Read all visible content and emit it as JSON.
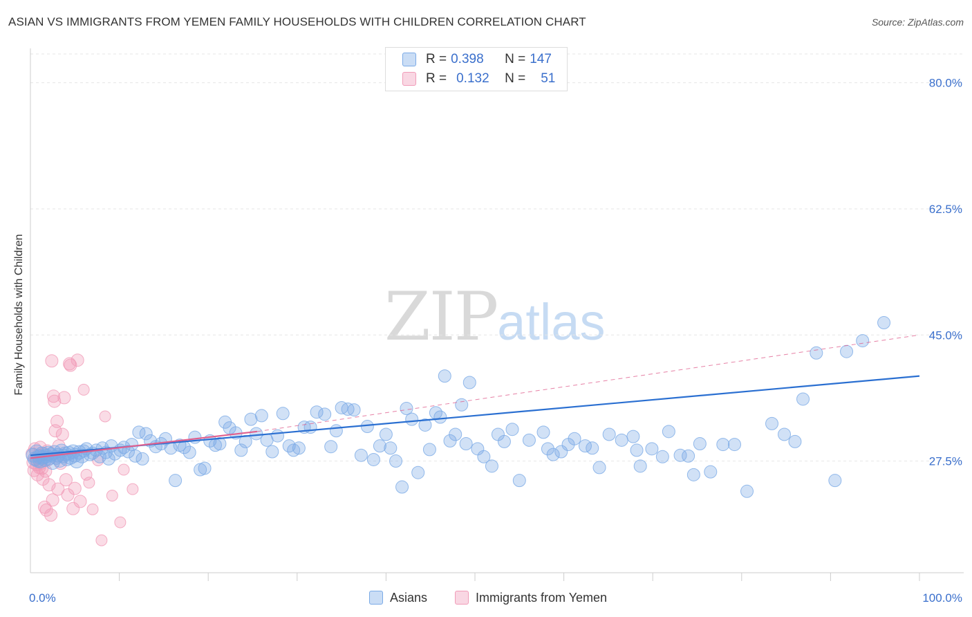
{
  "title": "ASIAN VS IMMIGRANTS FROM YEMEN FAMILY HOUSEHOLDS WITH CHILDREN CORRELATION CHART",
  "source": "Source: ZipAtlas.com",
  "watermark": {
    "zip": "ZIP",
    "atlas": "atlas"
  },
  "colors": {
    "asians": "#7aaae6",
    "yemen": "#f19bb8",
    "asians_line": "#2a6fd1",
    "yemen_line": "#e0608e"
  },
  "legend": {
    "asians": {
      "r_label": "R = ",
      "r_value": "0.398",
      "n_label": "N = ",
      "n_value": "147"
    },
    "yemen": {
      "r_label": "R = ",
      "r_value": "0.132",
      "n_label": "N = ",
      "n_value": "51"
    }
  },
  "chart_data": {
    "type": "scatter",
    "title": "ASIAN VS IMMIGRANTS FROM YEMEN FAMILY HOUSEHOLDS WITH CHILDREN CORRELATION CHART",
    "xlabel": "",
    "ylabel": "Family Households with Children",
    "xlim": [
      0,
      100
    ],
    "ylim": [
      12,
      84
    ],
    "x_tick_labels": [
      "0.0%",
      "100.0%"
    ],
    "y_ticks": [
      27.5,
      45.0,
      62.5,
      80.0
    ],
    "y_tick_labels": [
      "27.5%",
      "45.0%",
      "62.5%",
      "80.0%"
    ],
    "grid": true,
    "legend_position": "bottom",
    "series": [
      {
        "name": "Asians",
        "r": 0.398,
        "n": 147,
        "trend": {
          "x": [
            0,
            100
          ],
          "y": [
            28.3,
            39.3
          ],
          "style": "solid"
        },
        "points": [
          [
            0.3,
            28.3
          ],
          [
            0.5,
            27.8
          ],
          [
            0.7,
            28.8
          ],
          [
            0.8,
            27.6
          ],
          [
            1.0,
            28.1
          ],
          [
            1.1,
            27.5
          ],
          [
            1.3,
            28.5
          ],
          [
            1.4,
            28.0
          ],
          [
            1.6,
            27.7
          ],
          [
            1.8,
            28.2
          ],
          [
            2.0,
            28.6
          ],
          [
            2.1,
            27.9
          ],
          [
            2.3,
            28.4
          ],
          [
            2.5,
            27.3
          ],
          [
            2.7,
            28.7
          ],
          [
            2.9,
            28.0
          ],
          [
            3.1,
            28.3
          ],
          [
            3.3,
            27.6
          ],
          [
            3.5,
            28.9
          ],
          [
            3.7,
            28.2
          ],
          [
            3.9,
            28.5
          ],
          [
            4.1,
            27.8
          ],
          [
            4.3,
            28.6
          ],
          [
            4.5,
            28.0
          ],
          [
            4.8,
            28.8
          ],
          [
            5.0,
            28.3
          ],
          [
            5.2,
            27.5
          ],
          [
            5.5,
            28.7
          ],
          [
            5.8,
            28.2
          ],
          [
            6.0,
            28.9
          ],
          [
            6.3,
            29.2
          ],
          [
            6.7,
            28.4
          ],
          [
            7.0,
            28.6
          ],
          [
            7.4,
            29.0
          ],
          [
            7.8,
            28.1
          ],
          [
            8.1,
            29.3
          ],
          [
            8.5,
            28.7
          ],
          [
            8.8,
            27.8
          ],
          [
            9.1,
            29.6
          ],
          [
            9.5,
            28.5
          ],
          [
            10.1,
            29.0
          ],
          [
            10.5,
            29.4
          ],
          [
            11.0,
            28.8
          ],
          [
            11.4,
            29.8
          ],
          [
            11.8,
            28.2
          ],
          [
            12.2,
            31.5
          ],
          [
            12.6,
            27.8
          ],
          [
            13.0,
            31.3
          ],
          [
            13.5,
            30.3
          ],
          [
            14.1,
            29.5
          ],
          [
            14.7,
            29.9
          ],
          [
            15.2,
            30.6
          ],
          [
            15.8,
            29.3
          ],
          [
            16.3,
            24.8
          ],
          [
            16.8,
            29.7
          ],
          [
            17.3,
            29.4
          ],
          [
            17.9,
            28.7
          ],
          [
            18.5,
            30.8
          ],
          [
            19.1,
            26.3
          ],
          [
            19.6,
            26.5
          ],
          [
            20.2,
            30.3
          ],
          [
            20.8,
            29.7
          ],
          [
            21.3,
            29.9
          ],
          [
            21.9,
            32.9
          ],
          [
            22.4,
            32.1
          ],
          [
            23.1,
            31.4
          ],
          [
            23.7,
            29.0
          ],
          [
            24.2,
            30.2
          ],
          [
            24.8,
            33.3
          ],
          [
            25.4,
            31.3
          ],
          [
            26.0,
            33.8
          ],
          [
            26.6,
            30.4
          ],
          [
            27.2,
            28.8
          ],
          [
            27.8,
            31.0
          ],
          [
            28.4,
            34.1
          ],
          [
            29.1,
            29.6
          ],
          [
            29.6,
            29.0
          ],
          [
            30.2,
            29.3
          ],
          [
            30.8,
            32.2
          ],
          [
            31.5,
            32.2
          ],
          [
            32.2,
            34.3
          ],
          [
            33.1,
            34.0
          ],
          [
            33.8,
            29.5
          ],
          [
            34.4,
            31.7
          ],
          [
            35.0,
            34.9
          ],
          [
            35.7,
            34.7
          ],
          [
            36.4,
            34.6
          ],
          [
            37.2,
            28.3
          ],
          [
            37.9,
            32.3
          ],
          [
            38.6,
            27.7
          ],
          [
            39.3,
            29.6
          ],
          [
            40.0,
            31.2
          ],
          [
            40.5,
            29.3
          ],
          [
            41.1,
            27.5
          ],
          [
            41.8,
            23.9
          ],
          [
            42.3,
            34.8
          ],
          [
            42.9,
            33.3
          ],
          [
            43.6,
            25.9
          ],
          [
            44.4,
            32.5
          ],
          [
            44.9,
            29.1
          ],
          [
            45.6,
            34.2
          ],
          [
            46.1,
            33.6
          ],
          [
            46.6,
            39.3
          ],
          [
            47.2,
            30.3
          ],
          [
            47.8,
            31.2
          ],
          [
            48.5,
            35.3
          ],
          [
            49.0,
            29.9
          ],
          [
            49.4,
            38.4
          ],
          [
            50.3,
            29.2
          ],
          [
            51.0,
            28.1
          ],
          [
            51.9,
            26.8
          ],
          [
            52.6,
            31.2
          ],
          [
            53.3,
            30.2
          ],
          [
            54.2,
            31.9
          ],
          [
            55.0,
            24.8
          ],
          [
            56.1,
            30.4
          ],
          [
            57.7,
            31.5
          ],
          [
            58.2,
            29.2
          ],
          [
            58.8,
            28.4
          ],
          [
            59.7,
            28.8
          ],
          [
            60.5,
            29.8
          ],
          [
            61.2,
            30.6
          ],
          [
            62.4,
            29.6
          ],
          [
            63.2,
            29.3
          ],
          [
            64.0,
            26.6
          ],
          [
            65.1,
            31.2
          ],
          [
            66.5,
            30.4
          ],
          [
            67.8,
            30.9
          ],
          [
            68.2,
            29.0
          ],
          [
            68.6,
            26.8
          ],
          [
            69.9,
            29.2
          ],
          [
            71.1,
            28.1
          ],
          [
            71.8,
            31.6
          ],
          [
            73.1,
            28.3
          ],
          [
            74.0,
            28.2
          ],
          [
            74.6,
            25.6
          ],
          [
            75.3,
            29.9
          ],
          [
            76.5,
            26.0
          ],
          [
            77.9,
            29.8
          ],
          [
            79.2,
            29.8
          ],
          [
            80.6,
            23.3
          ],
          [
            83.4,
            32.7
          ],
          [
            84.8,
            31.2
          ],
          [
            86.0,
            30.2
          ],
          [
            86.9,
            36.1
          ],
          [
            88.4,
            42.5
          ],
          [
            90.5,
            24.8
          ],
          [
            91.8,
            42.7
          ],
          [
            93.6,
            44.2
          ],
          [
            96.0,
            46.7
          ]
        ]
      },
      {
        "name": "Immigrants from Yemen",
        "r": 0.132,
        "n": 51,
        "trend": {
          "x": [
            0,
            25.5,
            100
          ],
          "y": [
            27.9,
            31.6,
            45.0
          ],
          "style": "solid then dashed"
        },
        "points": [
          [
            0.2,
            28.5
          ],
          [
            0.3,
            27.3
          ],
          [
            0.4,
            26.2
          ],
          [
            0.5,
            29.2
          ],
          [
            0.6,
            27.8
          ],
          [
            0.7,
            27.0
          ],
          [
            0.8,
            25.6
          ],
          [
            0.9,
            28.3
          ],
          [
            1.0,
            26.6
          ],
          [
            1.1,
            29.4
          ],
          [
            1.2,
            27.2
          ],
          [
            1.3,
            26.5
          ],
          [
            1.4,
            25.0
          ],
          [
            1.5,
            28.5
          ],
          [
            1.6,
            21.1
          ],
          [
            1.7,
            26.1
          ],
          [
            1.8,
            20.7
          ],
          [
            1.9,
            28.9
          ],
          [
            2.0,
            27.7
          ],
          [
            2.1,
            24.2
          ],
          [
            2.3,
            20.0
          ],
          [
            2.4,
            41.4
          ],
          [
            2.5,
            22.1
          ],
          [
            2.6,
            36.5
          ],
          [
            2.7,
            35.8
          ],
          [
            2.8,
            31.7
          ],
          [
            3.0,
            33.0
          ],
          [
            3.1,
            23.6
          ],
          [
            3.2,
            29.6
          ],
          [
            3.4,
            27.2
          ],
          [
            3.6,
            31.2
          ],
          [
            3.8,
            36.3
          ],
          [
            4.0,
            24.9
          ],
          [
            4.2,
            22.8
          ],
          [
            4.4,
            41.0
          ],
          [
            4.5,
            40.8
          ],
          [
            4.8,
            20.9
          ],
          [
            5.0,
            23.7
          ],
          [
            5.3,
            41.5
          ],
          [
            5.6,
            21.9
          ],
          [
            6.0,
            37.4
          ],
          [
            6.3,
            25.6
          ],
          [
            6.6,
            24.5
          ],
          [
            7.0,
            20.8
          ],
          [
            7.6,
            27.6
          ],
          [
            8.0,
            16.5
          ],
          [
            8.4,
            33.7
          ],
          [
            9.2,
            22.7
          ],
          [
            10.1,
            19.0
          ],
          [
            10.5,
            26.3
          ],
          [
            11.5,
            23.6
          ]
        ]
      }
    ]
  }
}
